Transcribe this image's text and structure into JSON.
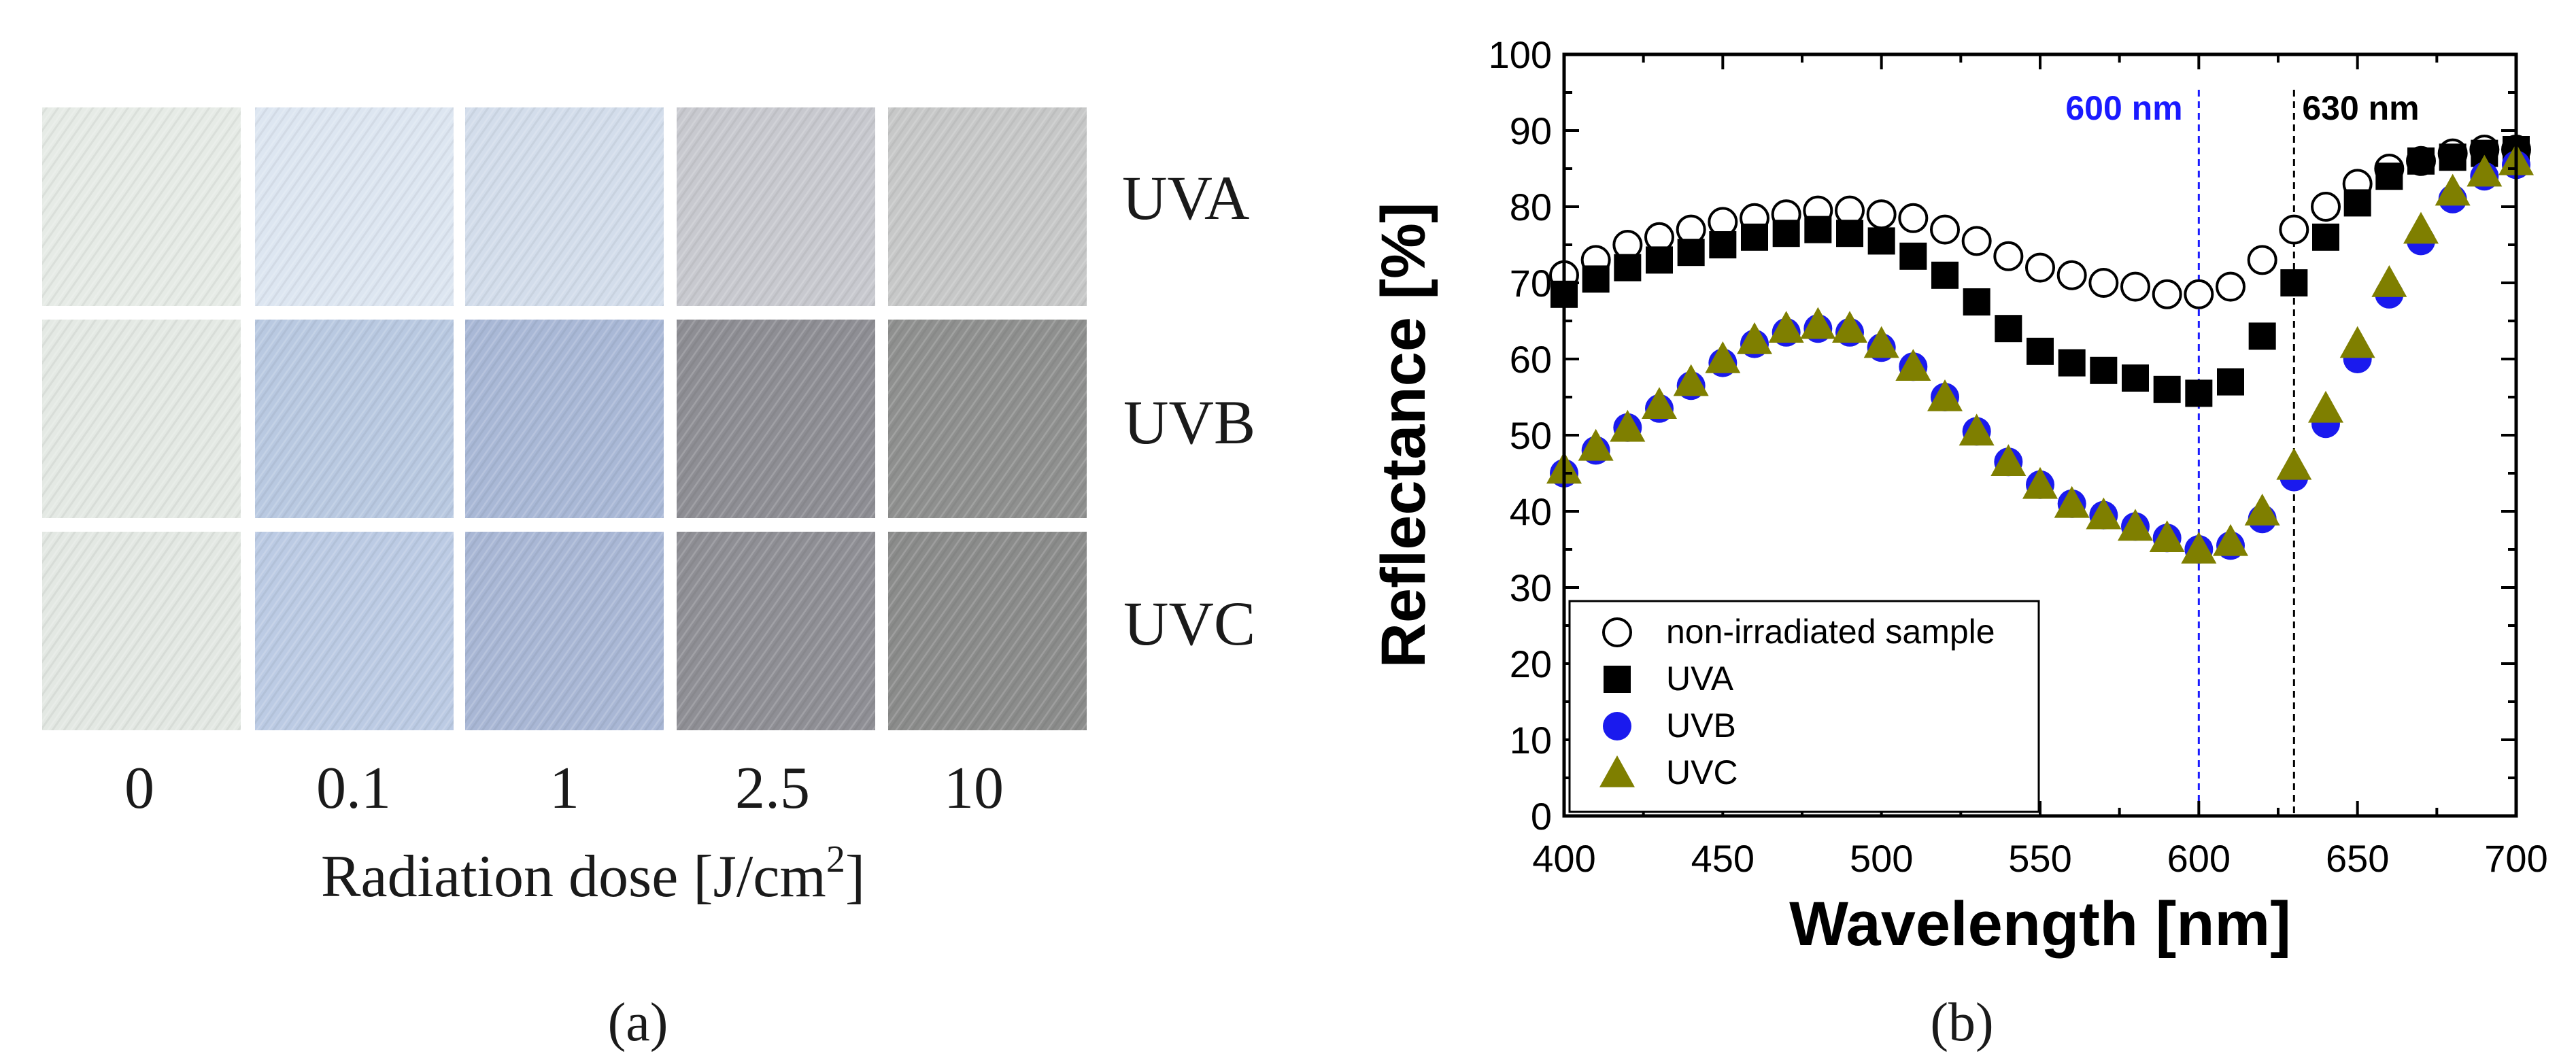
{
  "panel_a": {
    "caption": "(a)",
    "row_labels": [
      "UVA",
      "UVB",
      "UVC"
    ],
    "column_labels": [
      "0",
      "0.1",
      "1",
      "2.5",
      "10"
    ],
    "axis_label_main": "Radiation dose [J/cm",
    "axis_label_sup": "2",
    "axis_label_end": "]",
    "swatch_colors": [
      [
        "#e6ebe6",
        "#dde6f1",
        "#d3ddeb",
        "#c8c9cf",
        "#c7c8c8"
      ],
      [
        "#e4e9e4",
        "#b9c9e1",
        "#a9b8d6",
        "#8e8e94",
        "#8f908f"
      ],
      [
        "#e3e8e3",
        "#bccbe4",
        "#a9b7d5",
        "#8f8f95",
        "#8b8c8b"
      ]
    ]
  },
  "panel_b": {
    "caption": "(b)"
  },
  "chart_data": {
    "type": "scatter",
    "xlabel": "Wavelength [nm]",
    "ylabel": "Reflectance [%]",
    "xlim": [
      400,
      700
    ],
    "ylim": [
      0,
      100
    ],
    "x_ticks": [
      "400",
      "450",
      "500",
      "550",
      "600",
      "650",
      "700"
    ],
    "y_ticks": [
      "0",
      "10",
      "20",
      "30",
      "40",
      "50",
      "60",
      "70",
      "80",
      "90",
      "100"
    ],
    "grid": false,
    "legend_position": "bottom-left",
    "reference_lines": [
      {
        "x": 600,
        "label": "600 nm",
        "color": "#1a1aff"
      },
      {
        "x": 630,
        "label": "630 nm",
        "color": "#000000"
      }
    ],
    "x": [
      400,
      410,
      420,
      430,
      440,
      450,
      460,
      470,
      480,
      490,
      500,
      510,
      520,
      530,
      540,
      550,
      560,
      570,
      580,
      590,
      600,
      610,
      620,
      630,
      640,
      650,
      660,
      670,
      680,
      690,
      700
    ],
    "series": [
      {
        "name": "non-irradiated sample",
        "marker": "open-circle",
        "color": "#000000",
        "values": [
          71,
          73,
          75,
          76,
          77,
          78,
          78.5,
          79,
          79.5,
          79.5,
          79,
          78.5,
          77,
          75.5,
          73.5,
          72,
          71,
          70,
          69.5,
          68.5,
          68.5,
          69.5,
          73,
          77,
          80,
          83,
          85,
          86,
          87,
          87.5,
          87.5
        ]
      },
      {
        "name": "UVA",
        "marker": "square",
        "color": "#000000",
        "values": [
          68.5,
          70.5,
          72,
          73,
          74,
          75,
          76,
          76.5,
          77,
          76.5,
          75.5,
          73.5,
          71,
          67.5,
          64,
          61,
          59.5,
          58.5,
          57.5,
          56,
          55.5,
          57,
          63,
          70,
          76,
          80.5,
          84,
          86,
          86.5,
          87,
          87.5
        ]
      },
      {
        "name": "UVB",
        "marker": "circle",
        "color": "#1a1aee",
        "values": [
          45,
          48,
          51,
          53.5,
          56.5,
          59.5,
          62,
          63.5,
          64,
          63.5,
          61.5,
          59,
          55,
          50.5,
          46.5,
          43.5,
          41,
          39.5,
          38,
          36.5,
          35,
          35.5,
          39,
          44.5,
          51.5,
          60,
          68.5,
          75.5,
          81,
          84,
          85.5
        ]
      },
      {
        "name": "UVC",
        "marker": "triangle",
        "color": "#7f7f00",
        "values": [
          45.5,
          48.5,
          51,
          54,
          57,
          60,
          62.5,
          64,
          64.5,
          64,
          62,
          59,
          55,
          50.5,
          46.5,
          43.5,
          41,
          39.5,
          38,
          36.5,
          35,
          36,
          40,
          46,
          53.5,
          62,
          70,
          77,
          82,
          84.5,
          86
        ]
      }
    ]
  }
}
